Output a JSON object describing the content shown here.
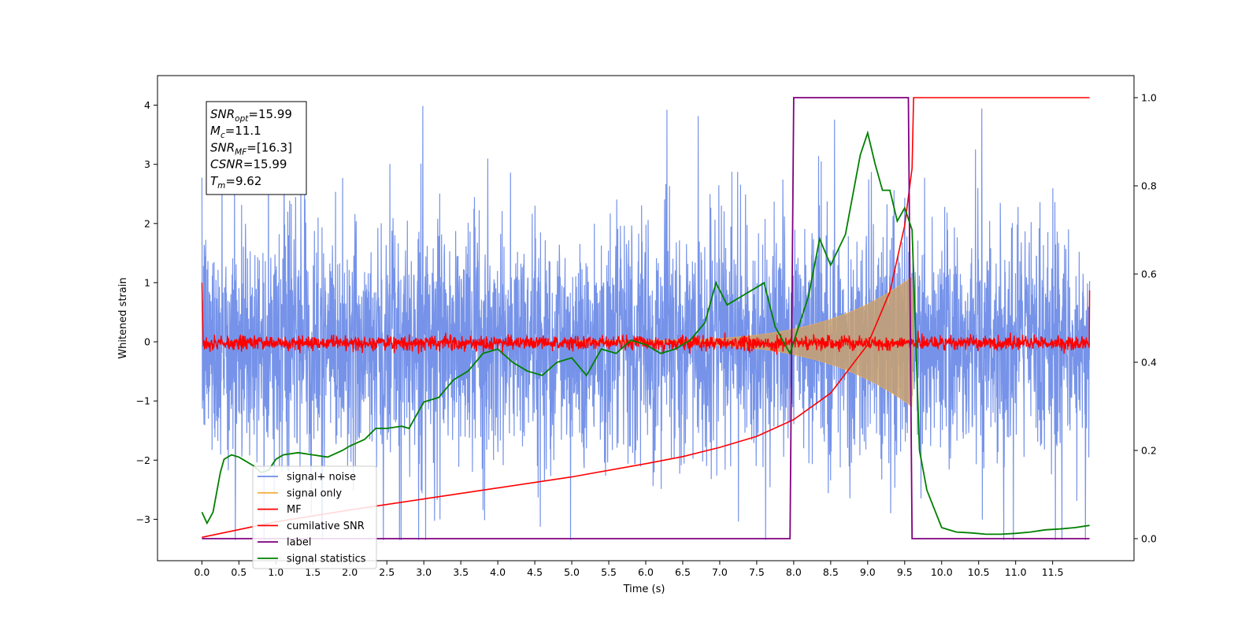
{
  "chart_data": {
    "type": "line",
    "xlabel": "Time (s)",
    "ylabel": "Whitened strain",
    "xlim": [
      -0.6,
      12.6
    ],
    "ylim": [
      -3.7,
      4.5
    ],
    "y2lim": [
      -0.05,
      1.05
    ],
    "x_ticks": [
      "0.0",
      "0.5",
      "1.0",
      "1.5",
      "2.0",
      "2.5",
      "3.0",
      "3.5",
      "4.0",
      "4.5",
      "5.0",
      "5.5",
      "6.0",
      "6.5",
      "7.0",
      "7.5",
      "8.0",
      "8.5",
      "9.0",
      "9.5",
      "10.0",
      "10.5",
      "11.0",
      "11.5"
    ],
    "y_ticks": [
      "−3",
      "−2",
      "−1",
      "0",
      "1",
      "2",
      "3",
      "4"
    ],
    "y2_ticks": [
      "0.0",
      "0.2",
      "0.4",
      "0.6",
      "0.8",
      "1.0"
    ],
    "annotation": {
      "snr_opt": {
        "sym": "SNR",
        "sub": "opt",
        "val": "=15.99"
      },
      "mc": {
        "sym": "M",
        "sub": "c",
        "val": "=11.1"
      },
      "snr_mf": {
        "sym": "SNR",
        "sub": "MF",
        "val": "=[16.3]"
      },
      "csnr": {
        "sym": "CSNR",
        "sub": "",
        "val": "=15.99"
      },
      "tm": {
        "sym": "T",
        "sub": "m",
        "val": "=9.62"
      }
    },
    "legend_position": "lower-left",
    "legend": [
      {
        "label": "signal+ noise",
        "color": "#6f8de8"
      },
      {
        "label": "signal only",
        "color": "#f5b041"
      },
      {
        "label": "MF",
        "color": "#ff0000"
      },
      {
        "label": "cumilative SNR",
        "color": "#ff0000"
      },
      {
        "label": "label",
        "color": "#800080"
      },
      {
        "label": "signal statistics",
        "color": "#008000"
      }
    ],
    "series": [
      {
        "name": "signal+ noise",
        "axis": "left",
        "color": "#6f8de8",
        "x_range": [
          0.0,
          12.0
        ],
        "description": "whitened noise, amplitude ~ +/-2.5 with spikes to ~4.1"
      },
      {
        "name": "signal only",
        "axis": "left",
        "color": "#f5b041",
        "chirp_start": [
          5.0,
          0.02
        ],
        "chirp_peak": [
          9.6,
          1.1
        ],
        "end": 9.62
      },
      {
        "name": "MF",
        "axis": "left",
        "color": "#ff0000",
        "x_range": [
          0.0,
          12.0
        ],
        "start_value": 1.0,
        "end_value": 0.87
      },
      {
        "name": "cumilative SNR",
        "axis": "right",
        "color": "#ff0000",
        "x": [
          0.0,
          1.0,
          2.0,
          3.0,
          4.0,
          5.0,
          6.0,
          6.5,
          7.0,
          7.5,
          8.0,
          8.5,
          9.0,
          9.3,
          9.5,
          9.6,
          9.62,
          12.0
        ],
        "y": [
          0.003,
          0.038,
          0.065,
          0.09,
          0.115,
          0.14,
          0.17,
          0.186,
          0.207,
          0.232,
          0.27,
          0.33,
          0.44,
          0.56,
          0.71,
          0.84,
          1.0,
          1.0
        ]
      },
      {
        "name": "label",
        "axis": "right",
        "color": "#800080",
        "x": [
          0.0,
          7.95,
          8.0,
          9.55,
          9.6,
          12.0
        ],
        "y": [
          0.0,
          0.0,
          1.0,
          1.0,
          0.0,
          0.0
        ]
      },
      {
        "name": "signal statistics",
        "axis": "right",
        "color": "#008000",
        "x": [
          0.0,
          0.07,
          0.15,
          0.25,
          0.3,
          0.4,
          0.5,
          0.55,
          0.6,
          0.7,
          0.8,
          0.9,
          1.0,
          1.1,
          1.3,
          1.5,
          1.7,
          1.9,
          2.0,
          2.2,
          2.35,
          2.5,
          2.7,
          2.8,
          3.0,
          3.2,
          3.4,
          3.6,
          3.8,
          4.0,
          4.2,
          4.4,
          4.6,
          4.8,
          5.0,
          5.2,
          5.4,
          5.6,
          5.8,
          6.0,
          6.2,
          6.4,
          6.6,
          6.8,
          6.95,
          7.1,
          7.3,
          7.5,
          7.6,
          7.75,
          7.95,
          8.2,
          8.35,
          8.5,
          8.7,
          8.9,
          9.0,
          9.1,
          9.2,
          9.3,
          9.4,
          9.5,
          9.6,
          9.7,
          9.8,
          10.0,
          10.2,
          10.4,
          10.6,
          10.8,
          11.0,
          11.2,
          11.4,
          11.6,
          11.8,
          12.0
        ],
        "y": [
          0.06,
          0.035,
          0.06,
          0.15,
          0.18,
          0.19,
          0.185,
          0.18,
          0.175,
          0.165,
          0.15,
          0.155,
          0.18,
          0.19,
          0.195,
          0.19,
          0.185,
          0.2,
          0.21,
          0.225,
          0.25,
          0.25,
          0.255,
          0.25,
          0.31,
          0.32,
          0.36,
          0.38,
          0.42,
          0.43,
          0.4,
          0.38,
          0.37,
          0.4,
          0.41,
          0.37,
          0.43,
          0.42,
          0.45,
          0.44,
          0.42,
          0.43,
          0.45,
          0.49,
          0.58,
          0.53,
          0.55,
          0.57,
          0.58,
          0.48,
          0.42,
          0.55,
          0.68,
          0.62,
          0.69,
          0.87,
          0.92,
          0.85,
          0.79,
          0.79,
          0.72,
          0.75,
          0.7,
          0.2,
          0.11,
          0.025,
          0.015,
          0.013,
          0.01,
          0.01,
          0.012,
          0.015,
          0.02,
          0.022,
          0.025,
          0.03
        ]
      }
    ]
  }
}
